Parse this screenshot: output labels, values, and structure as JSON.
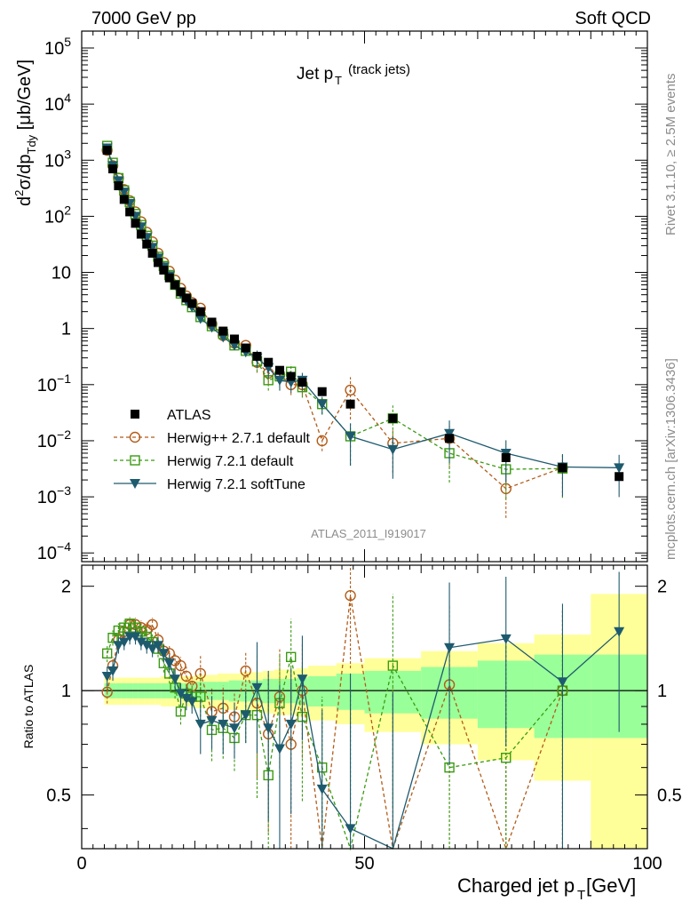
{
  "header": {
    "left": "7000 GeV pp",
    "right": "Soft QCD"
  },
  "side_text": {
    "rivet": "Rivet 3.1.10, ≥ 2.5M events",
    "mcplots": "mcplots.cern.ch [arXiv:1306.3436]"
  },
  "analysis_label": "ATLAS_2011_I919017",
  "chart_data": [
    {
      "type": "scatter",
      "title_main": "Jet p",
      "title_sub": "T",
      "title_extra": "(track jets)",
      "ylabel": "d²σ/dp_Tdy [μb/GeV]",
      "ylabel_parts": [
        "d",
        "2",
        "σ/dp",
        "Tdy",
        " [μb/GeV]"
      ],
      "yscale": "log",
      "ylim": [
        7e-05,
        200000
      ],
      "xlim": [
        0,
        100
      ],
      "y_tick_labels": [
        "10⁻⁴",
        "10⁻³",
        "10⁻²",
        "10⁻¹",
        "1",
        "10",
        "10²",
        "10³",
        "10⁴",
        "10⁵"
      ],
      "y_tick_values": [
        0.0001,
        0.001,
        0.01,
        0.1,
        1,
        10,
        100,
        1000,
        10000,
        100000
      ],
      "y_tick_display": [
        {
          "base": "10",
          "exp": "−4"
        },
        {
          "base": "10",
          "exp": "−3"
        },
        {
          "base": "10",
          "exp": "−2"
        },
        {
          "base": "10",
          "exp": "−1"
        },
        {
          "base": "1",
          "exp": ""
        },
        {
          "base": "10",
          "exp": ""
        },
        {
          "base": "10",
          "exp": "2"
        },
        {
          "base": "10",
          "exp": "3"
        },
        {
          "base": "10",
          "exp": "4"
        },
        {
          "base": "10",
          "exp": "5"
        }
      ],
      "legend_position": "middle-left",
      "series": [
        {
          "name": "ATLAS",
          "color": "#000000",
          "marker": "filled-square",
          "x": [
            4.5,
            5.5,
            6.5,
            7.5,
            8.5,
            9.5,
            10.5,
            11.5,
            12.5,
            13.5,
            14.5,
            15.5,
            16.5,
            17.5,
            18.5,
            19.5,
            21,
            23,
            25,
            27,
            29,
            31,
            33,
            35,
            37,
            39,
            42.5,
            47.5,
            55,
            65,
            75,
            85,
            95
          ],
          "y": [
            1500,
            700,
            350,
            200,
            120,
            75,
            48,
            32,
            22,
            15,
            11,
            8,
            6,
            4.5,
            3.5,
            2.8,
            2.0,
            1.3,
            0.9,
            0.65,
            0.45,
            0.32,
            0.25,
            0.18,
            0.14,
            0.11,
            0.075,
            0.045,
            0.025,
            0.011,
            0.005,
            0.0033,
            0.0023
          ]
        },
        {
          "name": "Herwig++ 2.7.1 default",
          "color": "#b25c1a",
          "marker": "open-circle",
          "dashed": true,
          "x": [
            4.5,
            5.5,
            6.5,
            7.5,
            8.5,
            9.5,
            10.5,
            11.5,
            12.5,
            13.5,
            14.5,
            15.5,
            16.5,
            17.5,
            18.5,
            19.5,
            21,
            23,
            25,
            27,
            29,
            31,
            33,
            35,
            37,
            39,
            42.5,
            47.5,
            55,
            65,
            75,
            85
          ],
          "y": [
            1500,
            800,
            480,
            300,
            190,
            120,
            80,
            52,
            35,
            22,
            15,
            10.5,
            7.3,
            5.2,
            3.8,
            2.9,
            2.3,
            1.2,
            0.75,
            0.55,
            0.5,
            0.25,
            0.16,
            0.15,
            0.1,
            0.1,
            0.01,
            0.08,
            0.009,
            0.011,
            0.0014,
            0.0033
          ]
        },
        {
          "name": "Herwig 7.2.1 default",
          "color": "#3a9a12",
          "marker": "open-square",
          "dashed": true,
          "x": [
            4.5,
            5.5,
            6.5,
            7.5,
            8.5,
            9.5,
            10.5,
            11.5,
            12.5,
            13.5,
            14.5,
            15.5,
            16.5,
            17.5,
            18.5,
            19.5,
            21,
            23,
            25,
            27,
            29,
            31,
            33,
            35,
            37,
            39,
            42.5,
            47.5,
            55,
            65,
            75,
            85
          ],
          "y": [
            1800,
            900,
            480,
            290,
            180,
            110,
            70,
            45,
            30,
            19,
            13,
            9,
            6,
            4.2,
            3.2,
            2.4,
            1.6,
            1.1,
            0.8,
            0.5,
            0.4,
            0.26,
            0.12,
            0.14,
            0.17,
            0.09,
            0.045,
            0.012,
            0.025,
            0.006,
            0.0031,
            0.0032
          ]
        },
        {
          "name": "Herwig 7.2.1 softTune",
          "color": "#1e5a6e",
          "marker": "filled-triangle-down",
          "dashed": false,
          "x": [
            4.5,
            5.5,
            6.5,
            7.5,
            8.5,
            9.5,
            10.5,
            11.5,
            12.5,
            13.5,
            14.5,
            15.5,
            16.5,
            17.5,
            18.5,
            19.5,
            21,
            23,
            25,
            27,
            29,
            31,
            33,
            35,
            37,
            39,
            42.5,
            47.5,
            55,
            65,
            75,
            85,
            95
          ],
          "y": [
            1650,
            800,
            430,
            270,
            170,
            100,
            65,
            42,
            28,
            18,
            12.5,
            8.7,
            6,
            4.2,
            3.1,
            2.4,
            1.5,
            1.05,
            0.7,
            0.5,
            0.38,
            0.3,
            0.2,
            0.12,
            0.11,
            0.12,
            0.045,
            0.012,
            0.007,
            0.0135,
            0.006,
            0.0034,
            0.0033
          ]
        }
      ]
    },
    {
      "type": "line",
      "ylabel": "Ratio to ATLAS",
      "xlabel_main": "Charged jet p",
      "xlabel_sub": "T",
      "xlabel_unit": " [GeV]",
      "xlim": [
        0,
        100
      ],
      "ylim": [
        0.35,
        2.3
      ],
      "yscale": "log",
      "x_tick_labels": [
        "0",
        "50",
        "100"
      ],
      "x_tick_values": [
        0,
        50,
        100
      ],
      "y_tick_labels": [
        "0.5",
        "1",
        "2"
      ],
      "y_tick_values": [
        0.5,
        1,
        2
      ],
      "bands": {
        "x_edges": [
          4,
          5,
          6,
          7,
          8,
          9,
          10,
          11,
          12,
          13,
          14,
          15,
          16,
          17,
          18,
          19,
          20,
          22,
          24,
          26,
          28,
          30,
          32,
          34,
          36,
          38,
          40,
          45,
          50,
          60,
          70,
          80,
          90,
          100
        ],
        "green_half": [
          0.05,
          0.05,
          0.05,
          0.05,
          0.05,
          0.05,
          0.05,
          0.05,
          0.05,
          0.05,
          0.05,
          0.05,
          0.05,
          0.05,
          0.05,
          0.05,
          0.06,
          0.06,
          0.06,
          0.07,
          0.07,
          0.07,
          0.08,
          0.08,
          0.08,
          0.09,
          0.1,
          0.12,
          0.14,
          0.17,
          0.22,
          0.27,
          0.27
        ],
        "yellow_half": [
          0.09,
          0.09,
          0.09,
          0.09,
          0.09,
          0.09,
          0.09,
          0.09,
          0.09,
          0.09,
          0.1,
          0.1,
          0.1,
          0.1,
          0.1,
          0.1,
          0.11,
          0.11,
          0.12,
          0.12,
          0.13,
          0.13,
          0.14,
          0.15,
          0.15,
          0.16,
          0.18,
          0.2,
          0.24,
          0.3,
          0.37,
          0.45,
          0.9
        ],
        "green_color": "#99ff99",
        "yellow_color": "#ffff99"
      },
      "series": [
        {
          "name": "Herwig++ 2.7.1 default",
          "color": "#b25c1a",
          "marker": "open-circle",
          "dashed": true,
          "x": [
            4.5,
            5.5,
            6.5,
            7.5,
            8.5,
            9.5,
            10.5,
            11.5,
            12.5,
            13.5,
            14.5,
            15.5,
            16.5,
            17.5,
            18.5,
            19.5,
            21,
            23,
            25,
            27,
            29,
            31,
            33,
            35,
            37,
            39,
            42.5,
            47.5,
            55,
            65,
            75,
            85
          ],
          "y": [
            0.99,
            1.18,
            1.4,
            1.48,
            1.55,
            1.55,
            1.52,
            1.5,
            1.55,
            1.4,
            1.3,
            1.28,
            1.22,
            1.18,
            1.1,
            1.03,
            1.12,
            0.87,
            0.89,
            0.84,
            1.14,
            0.92,
            0.75,
            0.96,
            0.7,
            1.0,
            0.1,
            1.88,
            0.3,
            1.04,
            0.28,
            1.0
          ]
        },
        {
          "name": "Herwig 7.2.1 default",
          "color": "#3a9a12",
          "marker": "open-square",
          "dashed": true,
          "x": [
            4.5,
            5.5,
            6.5,
            7.5,
            8.5,
            9.5,
            10.5,
            11.5,
            12.5,
            13.5,
            14.5,
            15.5,
            16.5,
            17.5,
            18.5,
            19.5,
            21,
            23,
            25,
            27,
            29,
            31,
            33,
            35,
            37,
            39,
            42.5,
            47.5,
            55,
            65,
            75,
            85
          ],
          "y": [
            1.28,
            1.42,
            1.49,
            1.52,
            1.56,
            1.52,
            1.48,
            1.43,
            1.38,
            1.32,
            1.2,
            1.12,
            1.02,
            0.87,
            0.98,
            0.96,
            0.96,
            0.77,
            0.78,
            0.73,
            0.85,
            0.85,
            0.57,
            0.92,
            1.25,
            0.84,
            0.6,
            0.28,
            1.18,
            0.6,
            0.64,
            1.0
          ]
        },
        {
          "name": "Herwig 7.2.1 softTune",
          "color": "#1e5a6e",
          "marker": "filled-triangle-down",
          "dashed": false,
          "x": [
            4.5,
            5.5,
            6.5,
            7.5,
            8.5,
            9.5,
            10.5,
            11.5,
            12.5,
            13.5,
            14.5,
            15.5,
            16.5,
            17.5,
            18.5,
            19.5,
            21,
            23,
            25,
            27,
            29,
            31,
            33,
            35,
            37,
            39,
            42.5,
            47.5,
            55,
            65,
            75,
            85,
            95
          ],
          "y": [
            1.1,
            1.14,
            1.35,
            1.38,
            1.43,
            1.43,
            1.38,
            1.35,
            1.32,
            1.35,
            1.28,
            1.2,
            1.08,
            0.98,
            0.95,
            0.93,
            0.8,
            0.82,
            0.8,
            0.78,
            0.85,
            1.02,
            0.78,
            0.68,
            0.8,
            1.08,
            0.52,
            0.4,
            0.27,
            1.33,
            1.41,
            1.06,
            1.48
          ]
        }
      ]
    }
  ]
}
